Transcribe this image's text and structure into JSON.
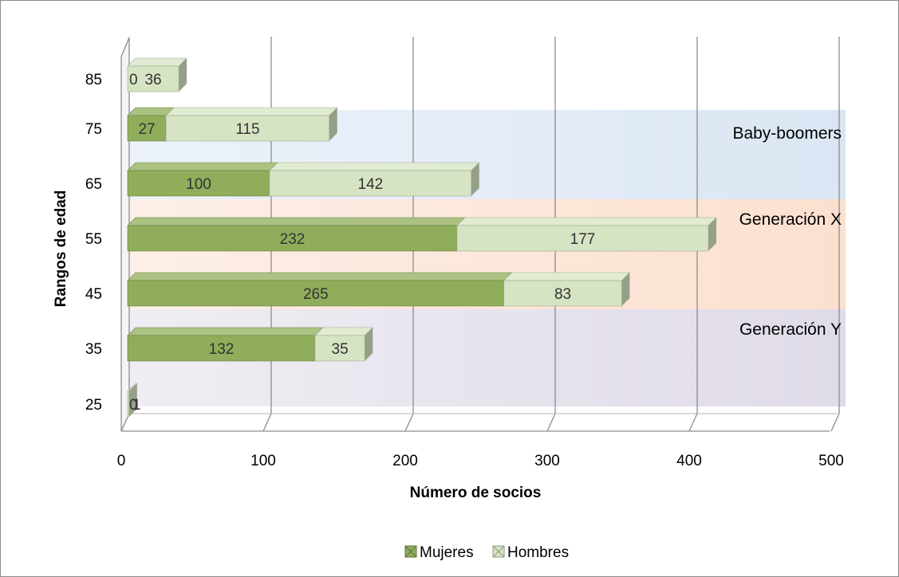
{
  "chart_data": {
    "type": "bar",
    "orientation": "horizontal",
    "stacked": true,
    "categories": [
      "25",
      "35",
      "45",
      "55",
      "65",
      "75",
      "85"
    ],
    "series": [
      {
        "name": "Mujeres",
        "values": [
          0,
          132,
          265,
          232,
          100,
          27,
          0
        ],
        "labels": [
          "0",
          "132",
          "265",
          "232",
          "100",
          "27",
          "0"
        ],
        "color": "#8fad5a"
      },
      {
        "name": "Hombres",
        "values": [
          1,
          35,
          83,
          177,
          142,
          115,
          36
        ],
        "labels": [
          "1",
          "35",
          "83",
          "177",
          "142",
          "115",
          "36"
        ],
        "color": "#d6e4c3"
      }
    ],
    "xlabel": "Número de socios",
    "ylabel": "Rangos de edad",
    "xlim": [
      0,
      500
    ],
    "xticks": [
      "0",
      "100",
      "200",
      "300",
      "400",
      "500"
    ],
    "grid": true,
    "legend_position": "bottom",
    "bands": [
      {
        "label": "Baby-boomers",
        "categories": [
          "75",
          "65"
        ],
        "color": "#dbe6f4"
      },
      {
        "label": "Generación X",
        "categories": [
          "55",
          "45"
        ],
        "color": "#fbe0cf"
      },
      {
        "label": "Generación Y",
        "categories": [
          "35",
          "25"
        ],
        "color": "#e0dbe8"
      }
    ]
  }
}
